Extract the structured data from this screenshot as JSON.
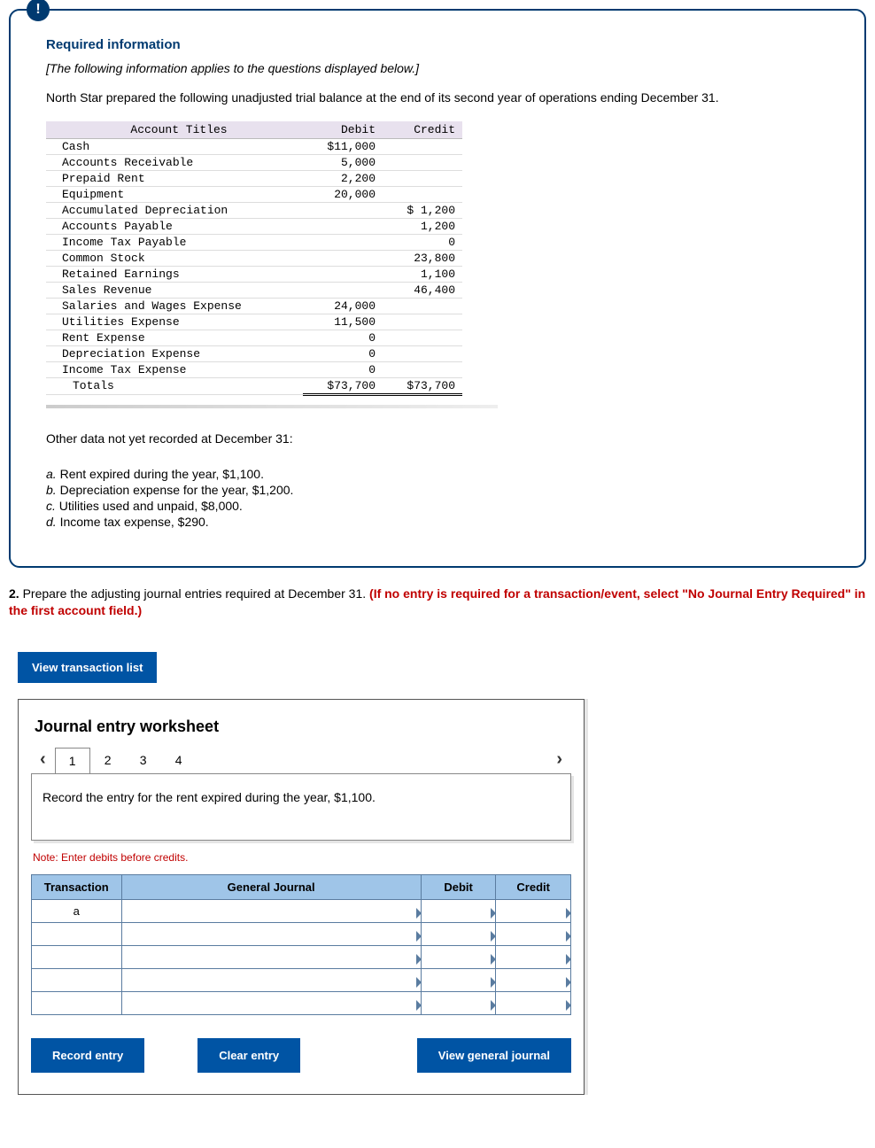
{
  "info": {
    "badge": "!",
    "title": "Required information",
    "note": "[The following information applies to the questions displayed below.]",
    "prose": "North Star prepared the following unadjusted trial balance at the end of its second year of operations ending December 31."
  },
  "trial_balance": {
    "headers": {
      "acct": "Account Titles",
      "debit": "Debit",
      "credit": "Credit"
    },
    "rows": [
      {
        "acct": "Cash",
        "debit": "$11,000",
        "credit": ""
      },
      {
        "acct": "Accounts Receivable",
        "debit": "5,000",
        "credit": ""
      },
      {
        "acct": "Prepaid Rent",
        "debit": "2,200",
        "credit": ""
      },
      {
        "acct": "Equipment",
        "debit": "20,000",
        "credit": ""
      },
      {
        "acct": "Accumulated Depreciation",
        "debit": "",
        "credit": "$ 1,200"
      },
      {
        "acct": "Accounts Payable",
        "debit": "",
        "credit": "1,200"
      },
      {
        "acct": "Income Tax Payable",
        "debit": "",
        "credit": "0"
      },
      {
        "acct": "Common Stock",
        "debit": "",
        "credit": "23,800"
      },
      {
        "acct": "Retained Earnings",
        "debit": "",
        "credit": "1,100"
      },
      {
        "acct": "Sales Revenue",
        "debit": "",
        "credit": "46,400"
      },
      {
        "acct": "Salaries and Wages Expense",
        "debit": "24,000",
        "credit": ""
      },
      {
        "acct": "Utilities Expense",
        "debit": "11,500",
        "credit": ""
      },
      {
        "acct": "Rent Expense",
        "debit": "0",
        "credit": ""
      },
      {
        "acct": "Depreciation Expense",
        "debit": "0",
        "credit": ""
      },
      {
        "acct": "Income Tax Expense",
        "debit": "0",
        "credit": ""
      }
    ],
    "totals": {
      "label": "Totals",
      "debit": "$73,700",
      "credit": "$73,700"
    }
  },
  "other_data": {
    "heading": "Other data not yet recorded at December 31:",
    "items": [
      {
        "letter": "a.",
        "text": " Rent expired during the year, $1,100."
      },
      {
        "letter": "b.",
        "text": " Depreciation expense for the year, $1,200."
      },
      {
        "letter": "c.",
        "text": " Utilities used and unpaid, $8,000."
      },
      {
        "letter": "d.",
        "text": " Income tax expense, $290."
      }
    ]
  },
  "question": {
    "num": "2.",
    "text": " Prepare the adjusting journal entries required at December 31. ",
    "red": "(If no entry is required for a transaction/event, select \"No Journal Entry Required\" in the first account field.)"
  },
  "buttons": {
    "view_list": "View transaction list",
    "record": "Record entry",
    "clear": "Clear entry",
    "view_gj": "View general journal"
  },
  "worksheet": {
    "title": "Journal entry worksheet",
    "tabs": [
      "1",
      "2",
      "3",
      "4"
    ],
    "active_tab": 0,
    "instruction": "Record the entry for the rent expired during the year, $1,100.",
    "note": "Note: Enter debits before credits.",
    "headers": {
      "txn": "Transaction",
      "gj": "General Journal",
      "debit": "Debit",
      "credit": "Credit"
    },
    "first_txn": "a",
    "blank_rows": 5
  }
}
